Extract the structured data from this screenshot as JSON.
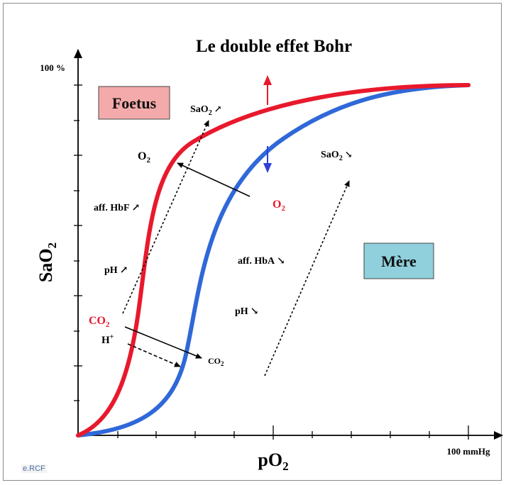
{
  "title": "Le double effet Bohr",
  "axes": {
    "y_label_main": "SaO",
    "y_label_sub": "2",
    "x_label_main": "pO",
    "x_label_sub": "2",
    "y_max_label": "100 %",
    "x_max_label": "100 mmHg"
  },
  "boxes": {
    "fetus": "Foetus",
    "mother": "Mère"
  },
  "labels": {
    "sao2_up_main": "SaO",
    "sao2_up_sub": "2",
    "sao2_up_arrow": "↗",
    "sao2_down_main": "SaO",
    "sao2_down_sub": "2",
    "sao2_down_arrow": "↘",
    "o2_left_main": "O",
    "o2_left_sub": "2",
    "o2_right_main": "O",
    "o2_right_sub": "2",
    "aff_hbf": "aff. HbF",
    "aff_hbf_arrow": "↗",
    "aff_hba": "aff. HbA",
    "aff_hba_arrow": "↘",
    "ph_left": "pH",
    "ph_left_arrow": "↗",
    "ph_right": "pH",
    "ph_right_arrow": "↘",
    "co2_left_main": "CO",
    "co2_left_sub": "2",
    "hplus_main": "H",
    "hplus_sup": "+",
    "co2_right_main": "CO",
    "co2_right_sub": "2"
  },
  "credit": "e.RCF",
  "colors": {
    "fetal_curve": "#e8192c",
    "maternal_curve": "#2f68d8",
    "fetus_box": "#f4aaaa",
    "mother_box": "#8fd0dc",
    "up_arrow": "#e8192c",
    "down_arrow": "#2f3fd8"
  },
  "chart_data": {
    "type": "line",
    "title": "Le double effet Bohr",
    "xlabel": "pO2",
    "ylabel": "SaO2",
    "xlim": [
      0,
      100
    ],
    "ylim": [
      0,
      100
    ],
    "series": [
      {
        "name": "Foetus",
        "x": [
          0,
          5,
          10,
          15,
          20,
          25,
          30,
          40,
          50,
          60,
          70,
          80,
          90,
          100
        ],
        "y": [
          0,
          6,
          18,
          40,
          62,
          75,
          82,
          89,
          93,
          96,
          98,
          99,
          99.5,
          100
        ]
      },
      {
        "name": "Mère",
        "x": [
          0,
          10,
          20,
          25,
          30,
          35,
          40,
          50,
          60,
          70,
          80,
          90,
          100
        ],
        "y": [
          0,
          4,
          12,
          22,
          40,
          60,
          72,
          85,
          92,
          96,
          98,
          99.3,
          100
        ]
      }
    ]
  }
}
